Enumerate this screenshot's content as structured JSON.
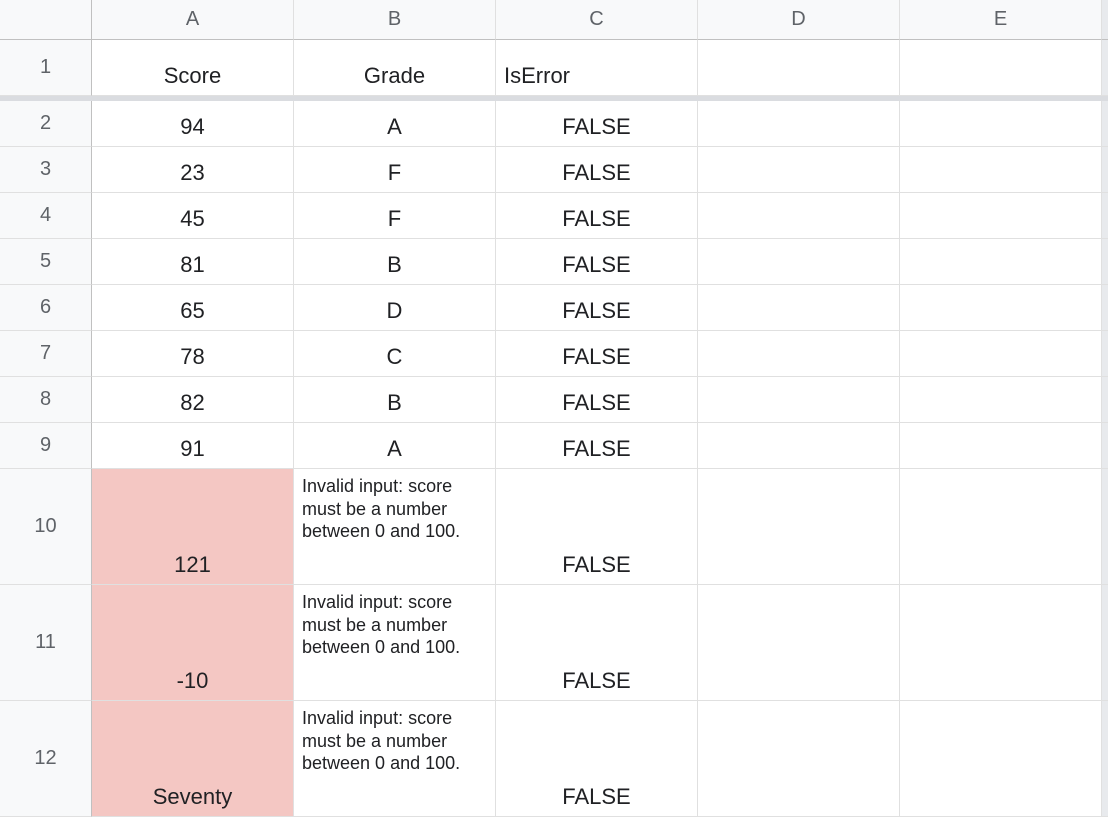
{
  "colors": {
    "header_bg": "#f8f9fa",
    "border_strong": "#c0c0c0",
    "border_light": "#e0e0e0",
    "text_header": "#5f6368",
    "text_cell": "#202124",
    "error_bg": "#f4c7c3",
    "freeze_bar": "#dadce0",
    "stub_bg": "#e8eaed"
  },
  "columns": [
    "A",
    "B",
    "C",
    "D",
    "E"
  ],
  "header_row": {
    "num": "1",
    "A": "Score",
    "B": "Grade",
    "C": "IsError",
    "D": "",
    "E": ""
  },
  "rows": [
    {
      "num": "2",
      "tall": false,
      "A": "94",
      "A_err": false,
      "B": "A",
      "B_wrap": false,
      "C": "FALSE"
    },
    {
      "num": "3",
      "tall": false,
      "A": "23",
      "A_err": false,
      "B": "F",
      "B_wrap": false,
      "C": "FALSE"
    },
    {
      "num": "4",
      "tall": false,
      "A": "45",
      "A_err": false,
      "B": "F",
      "B_wrap": false,
      "C": "FALSE"
    },
    {
      "num": "5",
      "tall": false,
      "A": "81",
      "A_err": false,
      "B": "B",
      "B_wrap": false,
      "C": "FALSE"
    },
    {
      "num": "6",
      "tall": false,
      "A": "65",
      "A_err": false,
      "B": "D",
      "B_wrap": false,
      "C": "FALSE"
    },
    {
      "num": "7",
      "tall": false,
      "A": "78",
      "A_err": false,
      "B": "C",
      "B_wrap": false,
      "C": "FALSE"
    },
    {
      "num": "8",
      "tall": false,
      "A": "82",
      "A_err": false,
      "B": "B",
      "B_wrap": false,
      "C": "FALSE"
    },
    {
      "num": "9",
      "tall": false,
      "A": "91",
      "A_err": false,
      "B": "A",
      "B_wrap": false,
      "C": "FALSE"
    },
    {
      "num": "10",
      "tall": true,
      "A": "121",
      "A_err": true,
      "B": "Invalid input: score must be a number between 0 and 100.",
      "B_wrap": true,
      "C": "FALSE"
    },
    {
      "num": "11",
      "tall": true,
      "A": "-10",
      "A_err": true,
      "B": "Invalid input: score must be a number between 0 and 100.",
      "B_wrap": true,
      "C": "FALSE"
    },
    {
      "num": "12",
      "tall": true,
      "A": "Seventy",
      "A_err": true,
      "B": "Invalid input: score must be a number between 0 and 100.",
      "B_wrap": true,
      "C": "FALSE"
    }
  ]
}
